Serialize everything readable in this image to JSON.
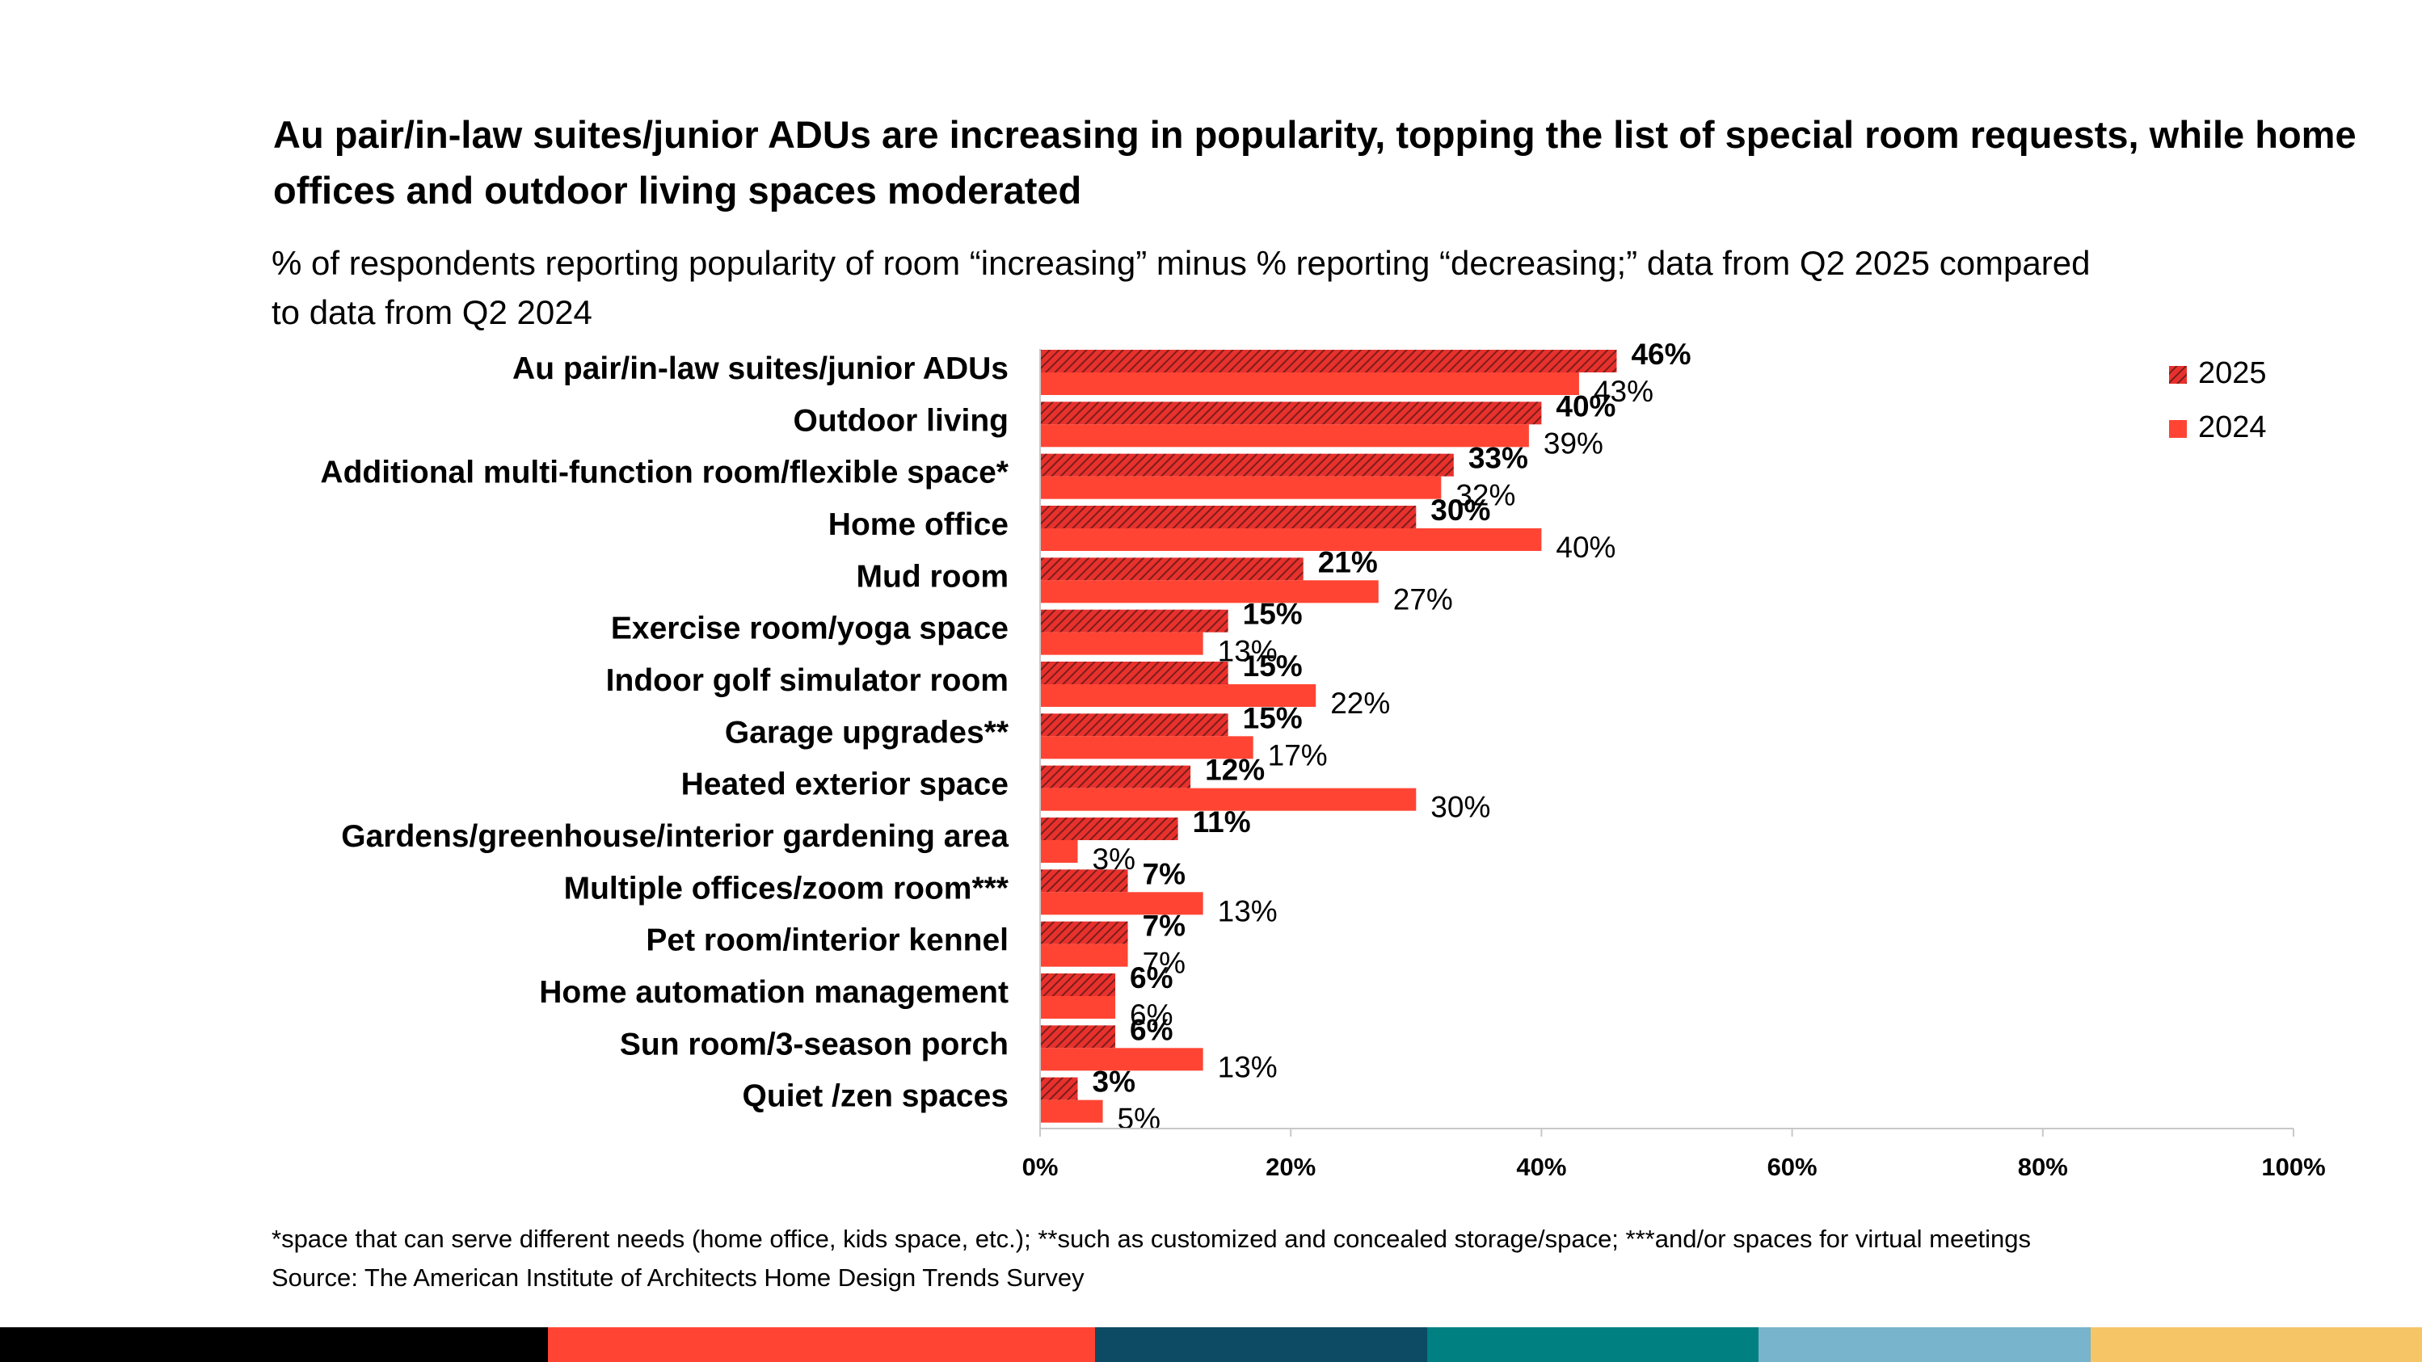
{
  "title": "Au pair/in-law suites/junior ADUs are increasing in popularity, topping the list of special room requests, while home offices and outdoor living spaces moderated",
  "subtitle": "% of respondents reporting popularity of room “increasing” minus % reporting “decreasing;” data from Q2 2025 compared to data from Q2 2024",
  "footnote": "*space that can serve different needs (home office, kids space, etc.); **such as customized and concealed storage/space; ***and/or spaces for virtual meetings",
  "source": "Source: The American Institute of Architects Home Design Trends Survey",
  "colors": {
    "series_2025_fill": "#e8312d",
    "series_2025_hatch": "#7a1e1a",
    "series_2024": "#ff4433",
    "axis": "#c8c8c8",
    "band": [
      "#000000",
      "#ff4433",
      "#0d4a63",
      "#008080",
      "#78b4cc",
      "#f5c566"
    ]
  },
  "chart_data": {
    "type": "bar",
    "orientation": "horizontal",
    "categories": [
      "Au pair/in-law suites/junior ADUs",
      "Outdoor living",
      "Additional multi-function room/flexible space*",
      "Home office",
      "Mud room",
      "Exercise room/yoga space",
      "Indoor golf simulator room",
      "Garage upgrades**",
      "Heated exterior space",
      "Gardens/greenhouse/interior gardening area",
      "Multiple offices/zoom room***",
      "Pet room/interior kennel",
      "Home automation management",
      "Sun room/3-season porch",
      "Quiet /zen spaces"
    ],
    "series": [
      {
        "name": "2025",
        "values": [
          46,
          40,
          33,
          30,
          21,
          15,
          15,
          15,
          12,
          11,
          7,
          7,
          6,
          6,
          3
        ],
        "labels": [
          "46%",
          "40%",
          "33%",
          "30%",
          "21%",
          "15%",
          "15%",
          "15%",
          "12%",
          "11%",
          "7%",
          "7%",
          "6%",
          "6%",
          "3%"
        ]
      },
      {
        "name": "2024",
        "values": [
          43,
          39,
          32,
          40,
          27,
          13,
          22,
          17,
          30,
          3,
          13,
          7,
          6,
          13,
          5
        ],
        "labels": [
          "43%",
          "39%",
          "32%",
          "40%",
          "27%",
          "13%",
          "22%",
          "17%",
          "30%",
          "3%",
          "13%",
          "7%",
          "6%",
          "13%",
          "5%"
        ]
      }
    ],
    "xlim": [
      0,
      100
    ],
    "xticks": [
      "0%",
      "20%",
      "40%",
      "60%",
      "80%",
      "100%"
    ],
    "legend": [
      "2025",
      "2024"
    ],
    "legend_position": "top-right",
    "grid": false
  }
}
